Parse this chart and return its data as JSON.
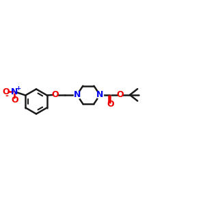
{
  "bg_color": "#ffffff",
  "bond_color": "#1a1a1a",
  "N_color": "#0000ee",
  "O_color": "#ee0000",
  "line_width": 1.8,
  "font_size": 8.5,
  "xlim": [
    0,
    10
  ],
  "ylim": [
    2,
    8
  ]
}
